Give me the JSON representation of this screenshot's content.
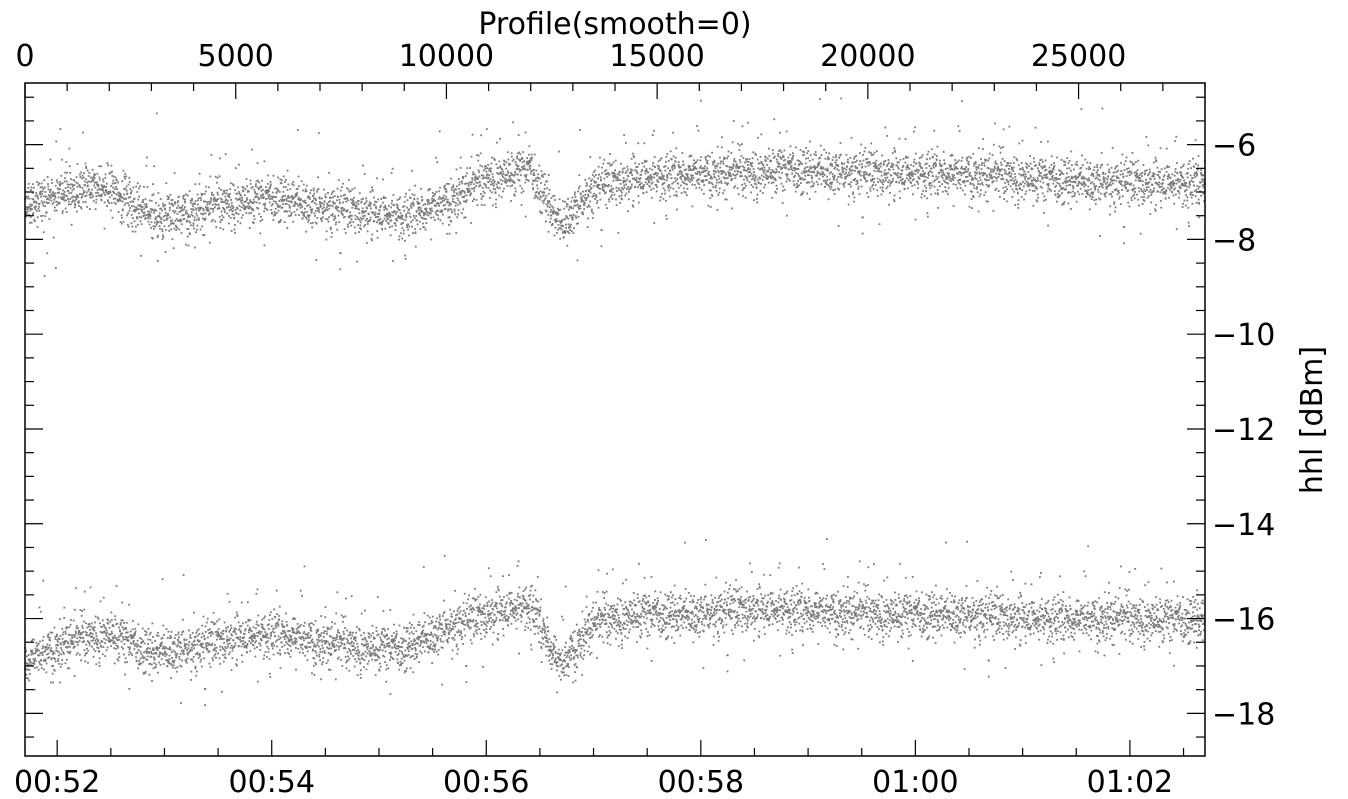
{
  "chart_data": {
    "type": "scatter",
    "title": "Profile(smooth=0)",
    "ylabel": "hhl [dBm]",
    "xlabel": "",
    "x_top": {
      "range": [
        0,
        28000
      ],
      "ticks": [
        0,
        5000,
        10000,
        15000,
        20000,
        25000
      ],
      "tick_labels": [
        "0",
        "5000",
        "10000",
        "15000",
        "20000",
        "25000"
      ]
    },
    "x_bottom": {
      "tick_labels": [
        "00:52",
        "00:54",
        "00:56",
        "00:58",
        "01:00",
        "01:02"
      ],
      "tick_minutes": [
        52,
        54,
        56,
        58,
        60,
        62
      ],
      "range_minutes": [
        51.7,
        62.7
      ]
    },
    "y": {
      "range": [
        -18.9,
        -4.7
      ],
      "ticks": [
        -6,
        -8,
        -10,
        -12,
        -14,
        -16,
        -18
      ],
      "tick_labels": [
        "−6",
        "−8",
        "−10",
        "−12",
        "−14",
        "−16",
        "−18"
      ]
    },
    "series": [
      {
        "marker_color": "#7a7a7a",
        "profile": [
          0,
          1000,
          2000,
          3000,
          4000,
          5000,
          6000,
          7000,
          8000,
          9000,
          10000,
          11000,
          12000,
          12700,
          13500,
          14500,
          16000,
          17000,
          18000,
          20000,
          22000,
          24000,
          26000,
          28000
        ],
        "mean": [
          -7.3,
          -7.0,
          -6.9,
          -7.5,
          -7.4,
          -7.2,
          -7.1,
          -7.3,
          -7.4,
          -7.5,
          -7.2,
          -6.7,
          -6.5,
          -7.7,
          -6.9,
          -6.7,
          -6.6,
          -6.6,
          -6.5,
          -6.6,
          -6.6,
          -6.7,
          -6.8,
          -6.8
        ]
      },
      {
        "marker_color": "#7a7a7a",
        "profile": [
          0,
          1000,
          2000,
          3000,
          4000,
          5000,
          6000,
          7000,
          8000,
          9000,
          10000,
          11000,
          12000,
          12700,
          13500,
          14500,
          16000,
          17000,
          18000,
          20000,
          22000,
          24000,
          26000,
          28000
        ],
        "mean": [
          -16.9,
          -16.5,
          -16.3,
          -16.7,
          -16.6,
          -16.4,
          -16.3,
          -16.5,
          -16.6,
          -16.6,
          -16.2,
          -15.9,
          -15.7,
          -17.0,
          -16.1,
          -15.9,
          -15.9,
          -15.8,
          -15.8,
          -15.9,
          -15.9,
          -16.0,
          -16.0,
          -16.0
        ]
      }
    ],
    "grid": false
  }
}
